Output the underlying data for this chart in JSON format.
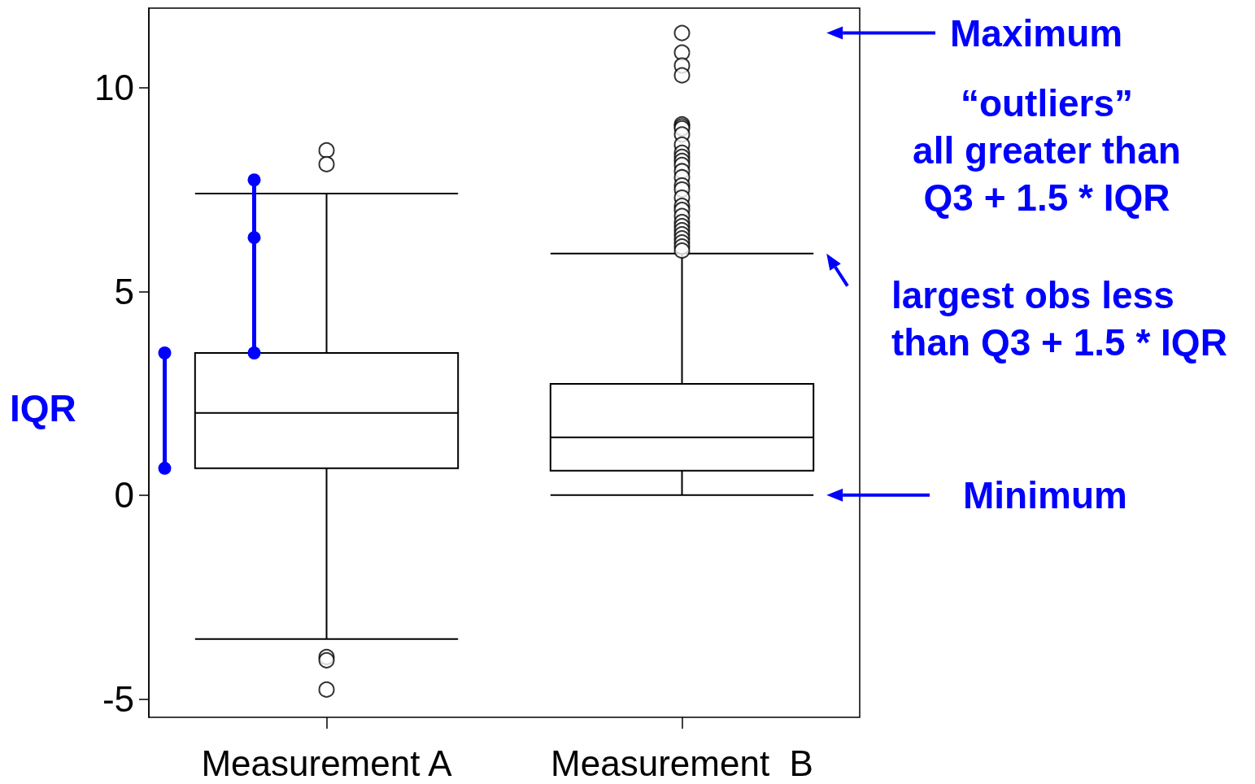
{
  "chart_data": {
    "type": "box",
    "categories": [
      "Measurement A",
      "Measurement  B"
    ],
    "boxes": [
      {
        "low": -3.53,
        "q1": 0.66,
        "median": 2.02,
        "q3": 3.49,
        "high": 7.4,
        "outliers": [
          8.46,
          8.12,
          -3.97,
          -4.05,
          -4.77
        ]
      },
      {
        "low": 0,
        "q1": 0.6,
        "median": 1.42,
        "q3": 2.73,
        "high": 5.93,
        "outliers": [
          11.34,
          10.86,
          10.54,
          10.3,
          9.1,
          9.05,
          9.0,
          8.85,
          8.6,
          8.4,
          8.3,
          8.2,
          8.1,
          7.95,
          7.8,
          7.6,
          7.5,
          7.3,
          7.1,
          7.0,
          6.85,
          6.7,
          6.6,
          6.5,
          6.4,
          6.3,
          6.2,
          6.1,
          6.0
        ]
      }
    ],
    "ylim": [
      -5.45,
      11.95
    ],
    "yticks": [
      -5,
      0,
      5,
      10
    ],
    "grid": false,
    "marker": "circle",
    "annotations": [
      "Maximum",
      "“outliers”\nall greater than\nQ3 + 1.5 * IQR",
      "largest obs less\nthan Q3 + 1.5 * IQR",
      "Minimum",
      "IQR"
    ]
  }
}
